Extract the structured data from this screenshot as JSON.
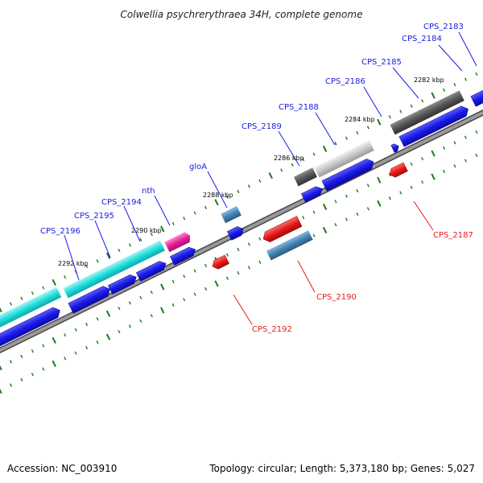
{
  "map": {
    "title": "Colwellia psychrerythraea 34H, complete genome",
    "accession": "Accession: NC_003910",
    "summary": "Topology: circular; Length: 5,373,180 bp; Genes: 5,027",
    "ticks": [
      {
        "label": "2282 kbp"
      },
      {
        "label": "2284 kbp"
      },
      {
        "label": "2286 kbp"
      },
      {
        "label": "2288 kbp"
      },
      {
        "label": "2290 kbp"
      },
      {
        "label": "2292 kbp"
      }
    ],
    "forward_genes": [
      {
        "name": "CPS_2183"
      },
      {
        "name": "CPS_2184"
      },
      {
        "name": "CPS_2185"
      },
      {
        "name": "CPS_2186"
      },
      {
        "name": "CPS_2188"
      },
      {
        "name": "CPS_2189"
      },
      {
        "name": "gloA"
      },
      {
        "name": "nth"
      },
      {
        "name": "CPS_2194"
      },
      {
        "name": "CPS_2195"
      },
      {
        "name": "CPS_2196"
      }
    ],
    "reverse_genes": [
      {
        "name": "CPS_2187"
      },
      {
        "name": "CPS_2190"
      },
      {
        "name": "CPS_2192"
      }
    ],
    "colors": {
      "backbone": "#7a7a7a",
      "cds_forward": "#1a1ae6",
      "cds_reverse": "#e61a1a",
      "tick_marks": "#1a7a1a",
      "feature_cyan": "#22dddd",
      "feature_magenta": "#e6229b",
      "feature_steelblue": "#4682b4",
      "feature_darkgray": "#555555",
      "feature_lightgray": "#c8c8c8",
      "label_forward": "#1a1ae6",
      "label_reverse": "#e61a1a"
    }
  }
}
